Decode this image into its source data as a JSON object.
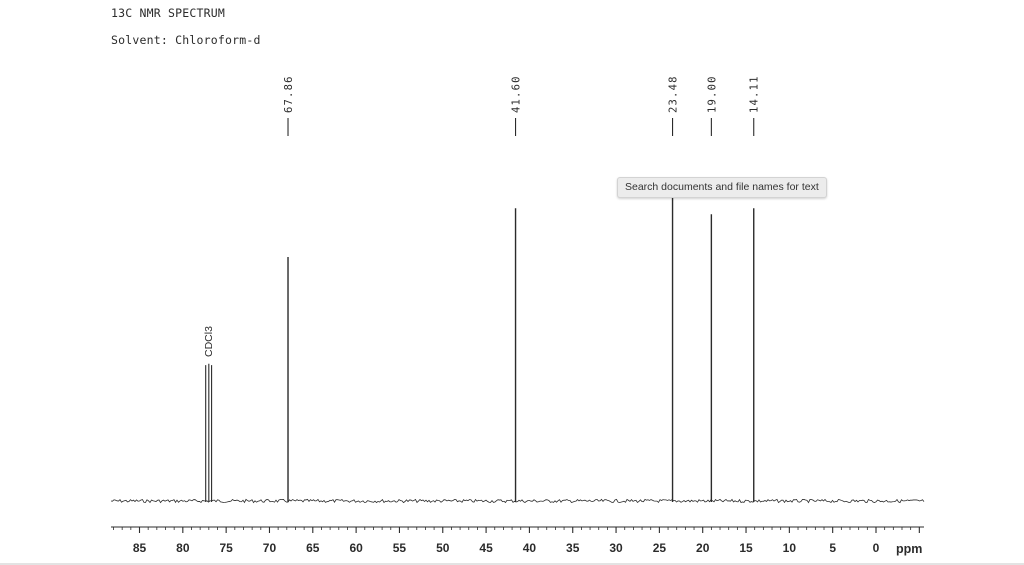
{
  "header": {
    "title": "13C NMR SPECTRUM",
    "solvent": "Solvent: Chloroform-d"
  },
  "tooltip": {
    "text": "Search documents and file names for text"
  },
  "colors": {
    "ink": "#2b2b2b",
    "tooltip_background": "#ececec"
  },
  "chart_data": {
    "type": "line",
    "title": "13C NMR SPECTRUM",
    "xlabel": "ppm",
    "ylabel": "",
    "x_reversed": true,
    "xlim": [
      88,
      -5
    ],
    "grid": false,
    "x_ticks_major": [
      85,
      80,
      75,
      70,
      65,
      60,
      55,
      50,
      45,
      40,
      35,
      30,
      25,
      20,
      15,
      10,
      5,
      0
    ],
    "tick_labels": [
      "85",
      "80",
      "75",
      "70",
      "65",
      "60",
      "55",
      "50",
      "45",
      "40",
      "35",
      "30",
      "25",
      "20",
      "15",
      "10",
      "5",
      "0"
    ],
    "peaks": [
      {
        "ppm": 67.86,
        "height": 0.8,
        "label": "67.86"
      },
      {
        "ppm": 41.6,
        "height": 0.96,
        "label": "41.60"
      },
      {
        "ppm": 23.48,
        "height": 1.0,
        "label": "23.48"
      },
      {
        "ppm": 19.0,
        "height": 0.94,
        "label": "19.00"
      },
      {
        "ppm": 14.11,
        "height": 0.96,
        "label": "14.11"
      }
    ],
    "solvent_peaks": {
      "label": "CDCl3",
      "ppm": [
        77.36,
        77.0,
        76.68
      ],
      "height": 0.45
    }
  }
}
